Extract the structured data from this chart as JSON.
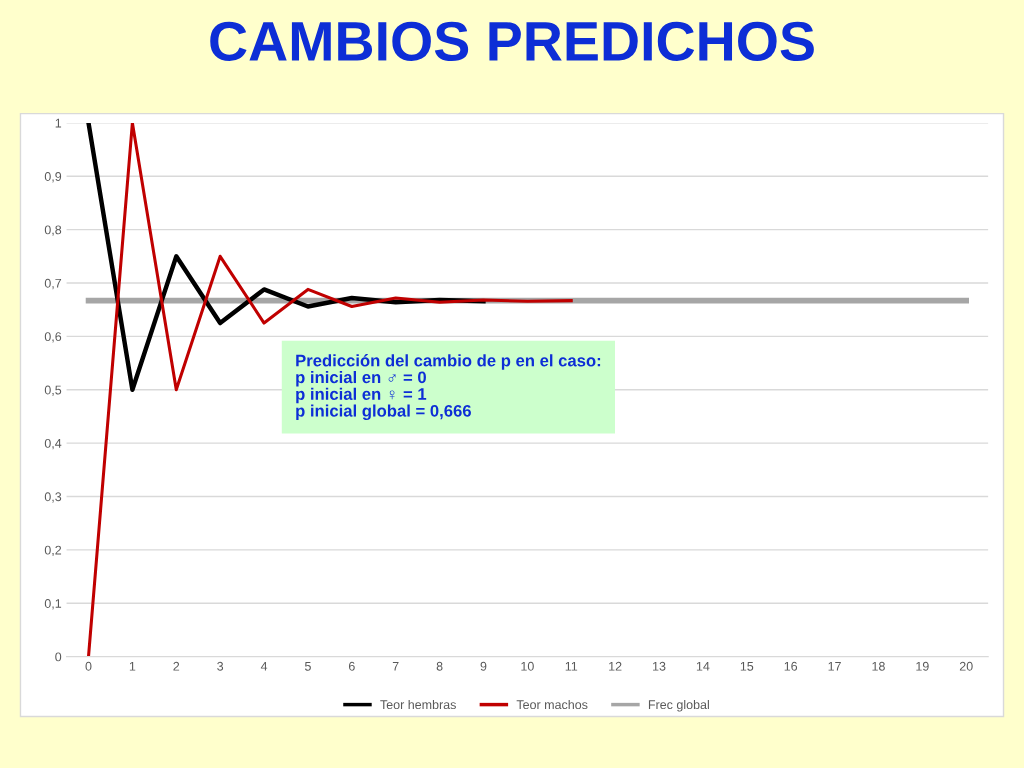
{
  "chart_data": {
    "type": "line",
    "title": "CAMBIOS PREDICHOS",
    "categories": [
      "0",
      "1",
      "2",
      "3",
      "4",
      "5",
      "6",
      "7",
      "8",
      "9",
      "10",
      "11",
      "12",
      "13",
      "14",
      "15",
      "16",
      "17",
      "18",
      "19",
      "20"
    ],
    "series": [
      {
        "name": "Frec global",
        "color": "#a6a6a6",
        "values": [
          0.667,
          0.667,
          0.667,
          0.667,
          0.667,
          0.667,
          0.667,
          0.667,
          0.667,
          0.667,
          0.667,
          0.667,
          0.667,
          0.667,
          0.667,
          0.667,
          0.667,
          0.667,
          0.667,
          0.667,
          0.667
        ]
      },
      {
        "name": "Teor hembras",
        "color": "#000000",
        "values": [
          1,
          0.5,
          0.75,
          0.625,
          0.688,
          0.656,
          0.672,
          0.664,
          0.668,
          0.666,
          null,
          null,
          null,
          null,
          null,
          null,
          null,
          null,
          null,
          null,
          null
        ]
      },
      {
        "name": "Teor machos",
        "color": "#c00000",
        "values": [
          0,
          1,
          0.5,
          0.75,
          0.625,
          0.688,
          0.656,
          0.672,
          0.664,
          0.668,
          0.666,
          0.667,
          null,
          null,
          null,
          null,
          null,
          null,
          null,
          null,
          null
        ]
      }
    ],
    "ylim": [
      0,
      1
    ],
    "yticks": [
      {
        "value": 0,
        "label": "0"
      },
      {
        "value": 0.1,
        "label": "0,1"
      },
      {
        "value": 0.2,
        "label": "0,2"
      },
      {
        "value": 0.3,
        "label": "0,3"
      },
      {
        "value": 0.4,
        "label": "0,4"
      },
      {
        "value": 0.5,
        "label": "0,5"
      },
      {
        "value": 0.6,
        "label": "0,6"
      },
      {
        "value": 0.7,
        "label": "0,7"
      },
      {
        "value": 0.8,
        "label": "0,8"
      },
      {
        "value": 0.9,
        "label": "0,9"
      },
      {
        "value": 1,
        "label": "1"
      }
    ],
    "grid": "y",
    "legend": "bottom",
    "marker": "none",
    "line_style": "solid",
    "annotations": [
      "Predicción del cambio de p en el caso:\np inicial en ♂ = 0\np inicial en ♀ = 1\np inicial global = 0,666"
    ]
  }
}
